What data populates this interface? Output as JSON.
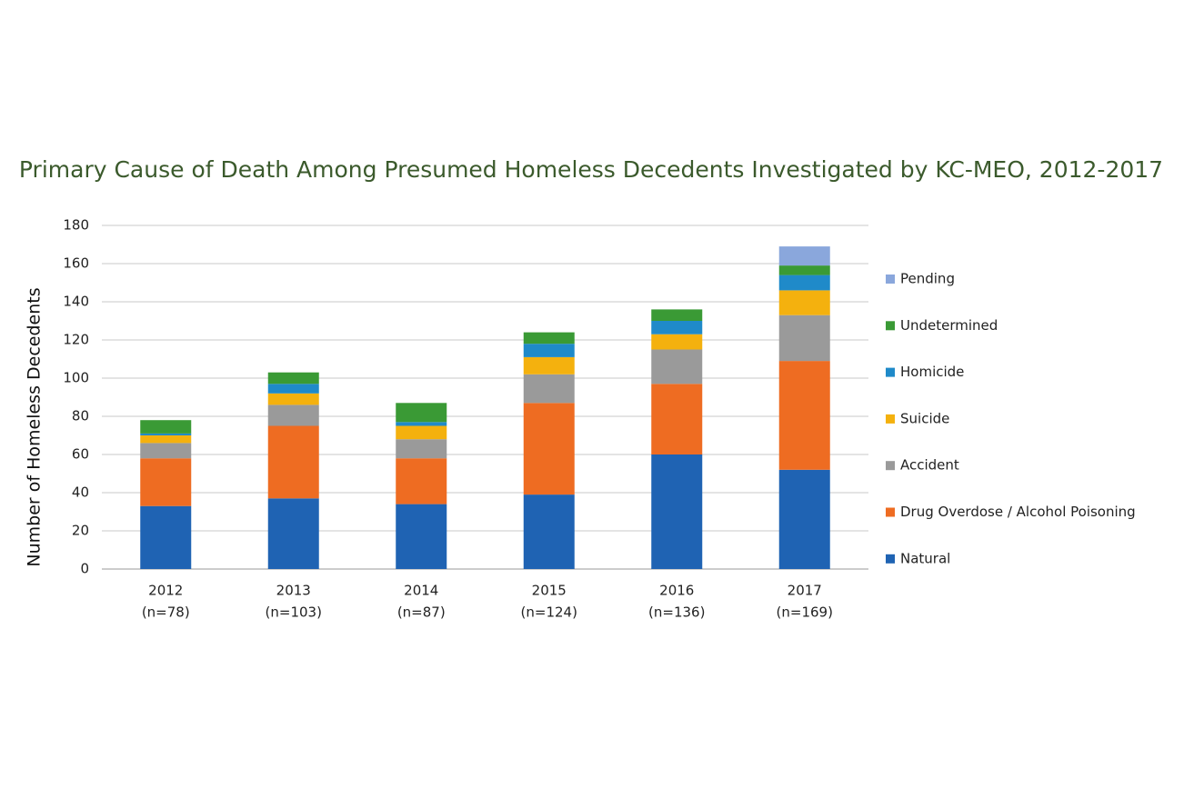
{
  "chart_data": {
    "type": "stacked_bar",
    "title": "Primary Cause of Death Among Presumed Homeless Decedents Investigated by KC-MEO, 2012-2017",
    "y_label": "Number of Homeless Decedents",
    "categories": [
      [
        "2012",
        "(n=78)"
      ],
      [
        "2013",
        "(n=103)"
      ],
      [
        "2014",
        "(n=87)"
      ],
      [
        "2015",
        "(n=124)"
      ],
      [
        "2016",
        "(n=136)"
      ],
      [
        "2017",
        "(n=169)"
      ]
    ],
    "series": [
      {
        "name": "Natural",
        "color": "#1f63b3",
        "values": [
          33,
          37,
          34,
          39,
          60,
          52
        ]
      },
      {
        "name": "Drug Overdose / Alcohol Poisoning",
        "color": "#ee6c22",
        "values": [
          25,
          38,
          24,
          48,
          37,
          57
        ]
      },
      {
        "name": "Accident",
        "color": "#9a9a9a",
        "values": [
          8,
          11,
          10,
          15,
          18,
          24
        ]
      },
      {
        "name": "Suicide",
        "color": "#f4b10e",
        "values": [
          4,
          6,
          7,
          9,
          8,
          13
        ]
      },
      {
        "name": "Homicide",
        "color": "#1f8ac9",
        "values": [
          1,
          5,
          2,
          7,
          7,
          8
        ]
      },
      {
        "name": "Undetermined",
        "color": "#3a9a35",
        "values": [
          7,
          6,
          10,
          6,
          6,
          5
        ]
      },
      {
        "name": "Pending",
        "color": "#8aa7dc",
        "values": [
          0,
          0,
          0,
          0,
          0,
          10
        ]
      }
    ],
    "ylim": [
      0,
      180
    ],
    "yticks": [
      0,
      20,
      40,
      60,
      80,
      100,
      120,
      140,
      160,
      180
    ],
    "grid": true,
    "legend": "right"
  }
}
